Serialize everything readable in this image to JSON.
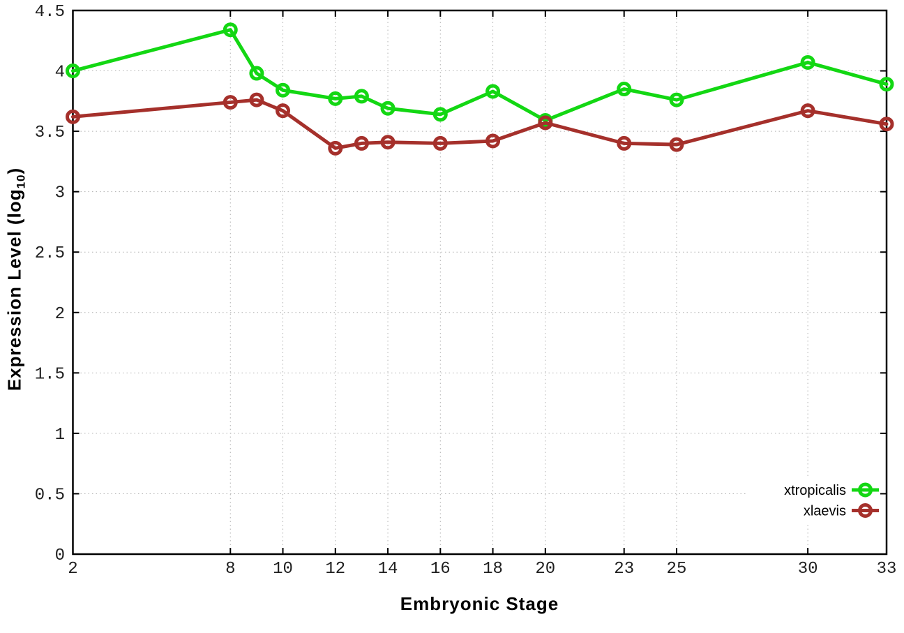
{
  "chart_data": {
    "type": "line",
    "title": "",
    "xlabel": "Embryonic Stage",
    "ylabel": "Expression Level (log10)",
    "ylabel_parts": {
      "prefix": "Expression Level (log",
      "sub": "10",
      "suffix": ")"
    },
    "xlim": [
      2,
      33
    ],
    "ylim": [
      0,
      4.5
    ],
    "grid": "dotted both axes",
    "legend_position": "inside bottom right",
    "marker": "open-circle",
    "x": [
      2,
      8,
      9,
      10,
      12,
      13,
      14,
      16,
      18,
      20,
      23,
      25,
      30,
      33
    ],
    "x_tick_values": [
      2,
      8,
      10,
      12,
      14,
      16,
      18,
      20,
      23,
      25,
      30,
      33
    ],
    "x_tick_labels": [
      "2",
      "8",
      "10",
      "12",
      "14",
      "16",
      "18",
      "20",
      "23",
      "25",
      "30",
      "33"
    ],
    "y_tick_values": [
      0,
      0.5,
      1,
      1.5,
      2,
      2.5,
      3,
      3.5,
      4,
      4.5
    ],
    "y_tick_labels": [
      "0",
      "0.5",
      "1",
      "1.5",
      "2",
      "2.5",
      "3",
      "3.5",
      "4",
      "4.5"
    ],
    "series": [
      {
        "name": "xtropicalis",
        "color": "#13d713",
        "values": [
          4.0,
          4.34,
          3.98,
          3.84,
          3.77,
          3.79,
          3.69,
          3.64,
          3.83,
          3.59,
          3.85,
          3.76,
          4.07,
          3.89
        ]
      },
      {
        "name": "xlaevis",
        "color": "#a5302b",
        "values": [
          3.62,
          3.74,
          3.76,
          3.67,
          3.36,
          3.4,
          3.41,
          3.4,
          3.42,
          3.57,
          3.4,
          3.39,
          3.67,
          3.56
        ]
      }
    ],
    "colors": {
      "background": "#ffffff",
      "grid": "#b0b0b0",
      "axis": "#000000",
      "tick_label": "#1f1f1f"
    }
  }
}
